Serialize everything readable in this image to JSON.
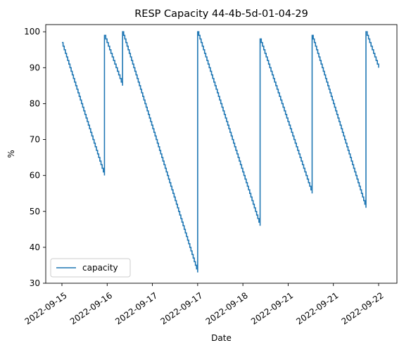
{
  "chart_data": {
    "type": "line",
    "title": "RESP Capacity 44-4b-5d-01-04-29",
    "xlabel": "Date",
    "ylabel": "%",
    "ylim": [
      30,
      102
    ],
    "yticks": [
      30,
      40,
      50,
      60,
      70,
      80,
      90,
      100
    ],
    "xticks": [
      "2022-09-15",
      "2022-09-16",
      "2022-09-17",
      "2022-09-17",
      "2022-09-18",
      "2022-09-21",
      "2022-09-21",
      "2022-09-22"
    ],
    "xlim": [
      0,
      7
    ],
    "legend": "lower-left",
    "grid": false,
    "series": [
      {
        "name": "capacity",
        "color": "#1f77b4",
        "segments": [
          {
            "x0": 0.0,
            "x1": 0.94,
            "y0": 97,
            "y1": 60
          },
          {
            "x0": 0.94,
            "x1": 1.34,
            "y0": 99,
            "y1": 85
          },
          {
            "x0": 1.34,
            "x1": 3.0,
            "y0": 100,
            "y1": 33
          },
          {
            "x0": 3.0,
            "x1": 4.38,
            "y0": 100,
            "y1": 46
          },
          {
            "x0": 4.38,
            "x1": 5.53,
            "y0": 98,
            "y1": 55
          },
          {
            "x0": 5.53,
            "x1": 6.72,
            "y0": 99,
            "y1": 51
          },
          {
            "x0": 6.72,
            "x1": 7.0,
            "y0": 100,
            "y1": 90
          }
        ]
      }
    ]
  }
}
